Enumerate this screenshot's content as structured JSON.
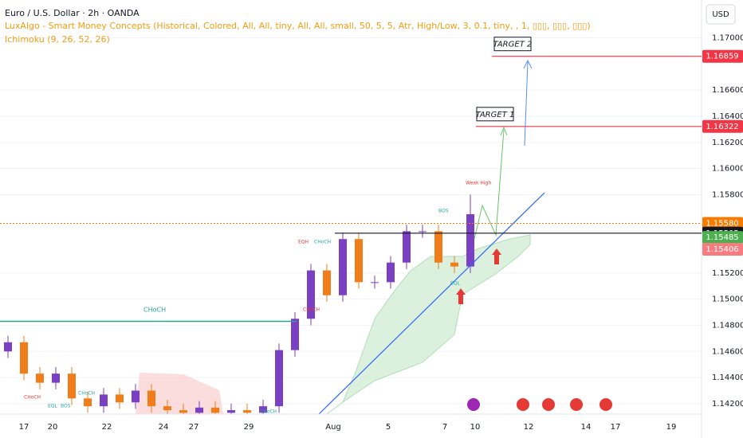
{
  "chart_data": {
    "type": "candlestick",
    "title": "Euro / U.S. Dollar · 2h · OANDA",
    "indicators": [
      "LuxAlgo - Smart Money Concepts (Historical, Colored, All, All, tiny, All, All, small, 50, 5, 5, Atr, High/Low, 3, 0.1, tiny, , 1, ▯▯▯, ▯▯▯, ▯▯▯)",
      "Ichimoku (9, 26, 52, 26)"
    ],
    "currency": "USD",
    "up_color": "#7b3fc4",
    "down_color": "#f07d1a",
    "open": [
      1.146,
      1.1467,
      1.1443,
      1.1436,
      1.1443,
      1.1424,
      1.1418,
      1.1427,
      1.1421,
      1.143,
      1.1418,
      1.1415,
      1.1413,
      1.1417,
      1.1413,
      1.1415,
      1.1413,
      1.1418,
      1.1461,
      1.1485,
      1.1522,
      1.1503,
      1.1546,
      1.1513,
      1.1513,
      1.1528,
      1.1552,
      1.1552,
      1.1528,
      1.1525
    ],
    "high": [
      1.1472,
      1.1472,
      1.1448,
      1.1448,
      1.1448,
      1.1429,
      1.1432,
      1.1432,
      1.1435,
      1.1435,
      1.1423,
      1.142,
      1.1422,
      1.1422,
      1.142,
      1.142,
      1.1423,
      1.1466,
      1.149,
      1.1527,
      1.1527,
      1.1551,
      1.1551,
      1.1518,
      1.1533,
      1.1557,
      1.1557,
      1.1557,
      1.1533,
      1.158
    ],
    "low": [
      1.1455,
      1.1438,
      1.1431,
      1.1431,
      1.1419,
      1.1413,
      1.1413,
      1.1416,
      1.1416,
      1.1413,
      1.141,
      1.1408,
      1.1408,
      1.1408,
      1.1408,
      1.1408,
      1.1408,
      1.1413,
      1.1456,
      1.148,
      1.1498,
      1.1498,
      1.1508,
      1.1508,
      1.1508,
      1.1523,
      1.1547,
      1.1523,
      1.152,
      1.152
    ],
    "close": [
      1.1467,
      1.1443,
      1.1436,
      1.1443,
      1.1424,
      1.1418,
      1.1427,
      1.1421,
      1.143,
      1.1418,
      1.1415,
      1.1413,
      1.1417,
      1.1413,
      1.1415,
      1.1413,
      1.1418,
      1.1461,
      1.1485,
      1.1522,
      1.1503,
      1.1546,
      1.1513,
      1.1513,
      1.1528,
      1.1552,
      1.1552,
      1.1528,
      1.1525,
      1.1565
    ],
    "ylim": [
      1.1412,
      1.1729
    ],
    "yticks": [
      {
        "value": 1.17,
        "label": "1.17000"
      },
      {
        "value": 1.166,
        "label": "1.16600"
      },
      {
        "value": 1.164,
        "label": "1.16400"
      },
      {
        "value": 1.162,
        "label": "1.16200"
      },
      {
        "value": 1.16,
        "label": "1.16000"
      },
      {
        "value": 1.158,
        "label": "1.15800"
      },
      {
        "value": 1.152,
        "label": "1.15200"
      },
      {
        "value": 1.15,
        "label": "1.15000"
      },
      {
        "value": 1.148,
        "label": "1.14800"
      },
      {
        "value": 1.146,
        "label": "1.14600"
      },
      {
        "value": 1.144,
        "label": "1.14400"
      },
      {
        "value": 1.142,
        "label": "1.14200"
      }
    ],
    "xticks": [
      "17",
      "20",
      "22",
      "24",
      "27",
      "29",
      "Aug",
      "5",
      "7",
      "10",
      "12",
      "14",
      "17",
      "19"
    ],
    "price_tags": [
      {
        "value": 1.16859,
        "label": "1.16859",
        "color": "#f23645"
      },
      {
        "value": 1.16322,
        "label": "1.16322",
        "color": "#f23645"
      },
      {
        "value": 1.1558,
        "label": "1.15580",
        "color": "#f57c00"
      },
      {
        "value": 1.15505,
        "label": "1.15505",
        "color": "#131722"
      },
      {
        "value": 1.15485,
        "label": "1.15485",
        "color": "#4caf50"
      },
      {
        "value": 1.15406,
        "label": "1.15406",
        "color": "#f77c80"
      }
    ],
    "targets": [
      {
        "label": "TARGET 2",
        "value": 1.16859
      },
      {
        "label": "TARGET 1",
        "value": 1.16322
      }
    ],
    "structure_labels": [
      "CHoCH",
      "EQH",
      "CHoCH",
      "BOS",
      "Weak High",
      "EQL",
      "CHoCH",
      "CHoCH",
      "EQL",
      "BOS",
      "CHoCH",
      "CHoCH"
    ],
    "choch_level": 1.1483
  }
}
